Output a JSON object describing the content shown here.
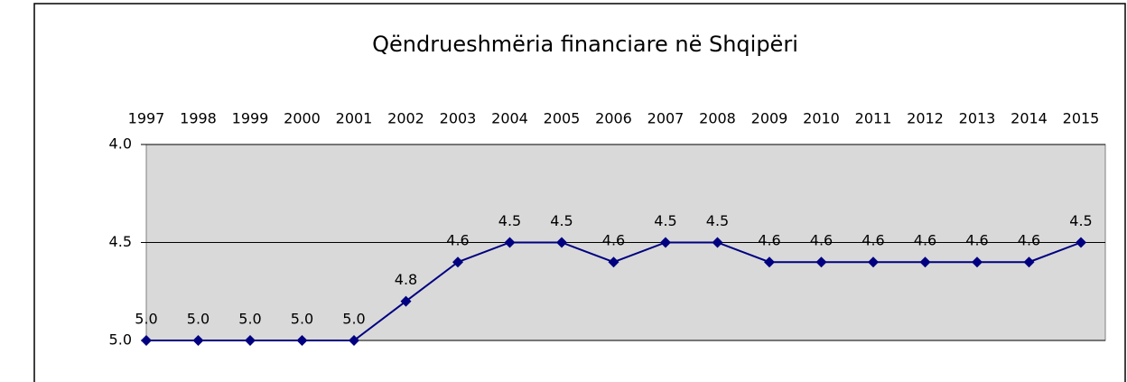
{
  "chart_data": {
    "type": "line",
    "title": "Qëndrueshmëria financiare në Shqipëri",
    "categories": [
      "1997",
      "1998",
      "1999",
      "2000",
      "2001",
      "2002",
      "2003",
      "2004",
      "2005",
      "2006",
      "2007",
      "2008",
      "2009",
      "2010",
      "2011",
      "2012",
      "2013",
      "2014",
      "2015"
    ],
    "series": [
      {
        "name": "Qëndrueshmëria",
        "color": "#000080",
        "values": [
          5.0,
          5.0,
          5.0,
          5.0,
          5.0,
          4.8,
          4.6,
          4.5,
          4.5,
          4.6,
          4.5,
          4.5,
          4.6,
          4.6,
          4.6,
          4.6,
          4.6,
          4.6,
          4.5
        ],
        "value_labels": [
          "5.0",
          "5.0",
          "5.0",
          "5.0",
          "5.0",
          "4.8",
          "4.6",
          "4.5",
          "4.5",
          "4.6",
          "4.5",
          "4.5",
          "4.6",
          "4.6",
          "4.6",
          "4.6",
          "4.6",
          "4.6",
          "4.5"
        ]
      }
    ],
    "ylim": [
      4,
      5
    ],
    "y_inverted": true,
    "yticks": [
      {
        "value": 4,
        "label": "4.0"
      },
      4.5,
      {
        "value": 5,
        "label": "5.0"
      }
    ],
    "grid": true
  }
}
